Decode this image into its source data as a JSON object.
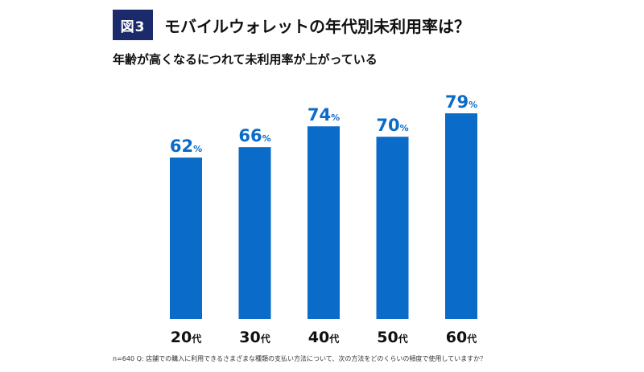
{
  "figure_label": "図3",
  "title": "モバイルウォレットの年代別未利用率は？",
  "subtitle": "年齢が高くなるにつれて未利用率が上がっている",
  "footnote": "n=640 Q: 店舗での購入に利用できるさまざまな種類の支払い方法について、次の方法をどのくらいの頻度で使用していますか？",
  "colors": {
    "bar": "#0b6bc8",
    "value_label": "#0b6bc8",
    "badge": "#1b2a6b",
    "category_label": "#111111"
  },
  "chart_data": {
    "type": "bar",
    "categories": [
      "20代",
      "30代",
      "40代",
      "50代",
      "60代"
    ],
    "category_numbers": [
      "20",
      "30",
      "40",
      "50",
      "60"
    ],
    "category_suffix": "代",
    "values": [
      62,
      66,
      74,
      70,
      79
    ],
    "value_unit": "%",
    "ylim": [
      0,
      100
    ],
    "grid": false,
    "legend": "none",
    "xlabel": "",
    "ylabel": ""
  }
}
